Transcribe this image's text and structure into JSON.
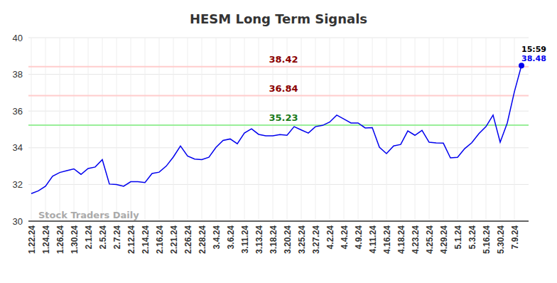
{
  "chart_data": {
    "type": "line",
    "title": "HESM Long Term Signals",
    "categories": [
      "1.22.24",
      null,
      "1.24.24",
      null,
      "1.26.24",
      null,
      "1.30.24",
      null,
      "2.1.24",
      null,
      "2.5.24",
      null,
      "2.7.24",
      null,
      "2.12.24",
      null,
      "2.14.24",
      null,
      "2.16.24",
      null,
      "2.21.24",
      null,
      "2.26.24",
      null,
      "2.28.24",
      null,
      "3.4.24",
      null,
      "3.6.24",
      null,
      "3.11.24",
      null,
      "3.13.24",
      null,
      "3.18.24",
      null,
      "3.20.24",
      null,
      "3.25.24",
      null,
      "3.27.24",
      null,
      "4.2.24",
      null,
      "4.4.24",
      null,
      "4.9.24",
      null,
      "4.11.24",
      null,
      "4.16.24",
      null,
      "4.18.24",
      null,
      "4.23.24",
      null,
      "4.25.24",
      null,
      "4.29.24",
      null,
      "5.1.24",
      null,
      "5.3.24",
      null,
      "5.16.24",
      null,
      "5.30.24",
      null,
      "7.9.24",
      null
    ],
    "values": [
      31.5,
      31.65,
      31.9,
      32.45,
      32.65,
      32.75,
      32.85,
      32.55,
      32.87,
      32.95,
      33.35,
      32.02,
      32.0,
      31.9,
      32.15,
      32.15,
      32.1,
      32.6,
      32.67,
      33.0,
      33.5,
      34.1,
      33.55,
      33.38,
      33.35,
      33.48,
      34.02,
      34.4,
      34.48,
      34.22,
      34.8,
      35.03,
      34.73,
      34.65,
      34.65,
      34.72,
      34.68,
      35.15,
      34.97,
      34.8,
      35.15,
      35.22,
      35.4,
      35.78,
      35.57,
      35.35,
      35.35,
      35.08,
      35.1,
      34.03,
      33.68,
      34.1,
      34.18,
      34.92,
      34.68,
      34.95,
      34.3,
      34.26,
      34.25,
      33.45,
      33.48,
      33.95,
      34.27,
      34.77,
      35.15,
      35.78,
      34.3,
      35.35,
      37.05,
      38.48
    ],
    "color": "#0000ee",
    "marker": "last",
    "time_label": "15:59",
    "reference_lines": [
      {
        "value": 38.42,
        "color": "#ffcccc",
        "label_color": "#8b0000"
      },
      {
        "value": 36.84,
        "color": "#ffcccc",
        "label_color": "#8b0000"
      },
      {
        "value": 35.23,
        "color": "#99ee99",
        "label_color": "#1a7a1a"
      }
    ],
    "watermark": "Stock Traders Daily",
    "ylim": [
      30,
      40
    ],
    "yticks": [
      30,
      32,
      34,
      36,
      38,
      40
    ],
    "grid": true
  }
}
